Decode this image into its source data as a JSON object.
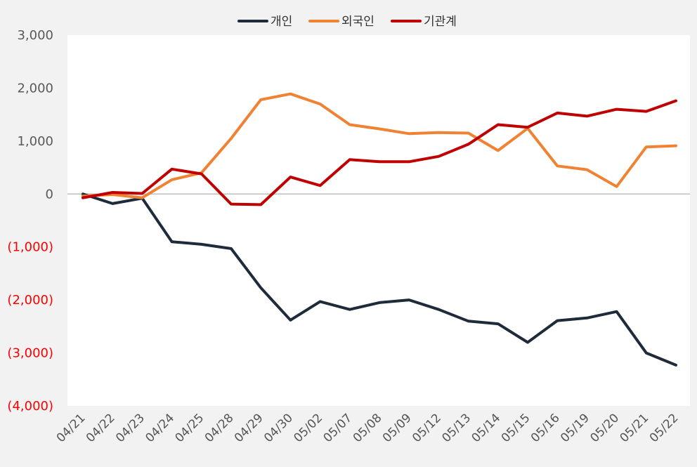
{
  "chart_data": {
    "type": "line",
    "categories": [
      "04/21",
      "04/22",
      "04/23",
      "04/24",
      "04/25",
      "04/28",
      "04/29",
      "04/30",
      "05/02",
      "05/07",
      "05/08",
      "05/09",
      "05/12",
      "05/13",
      "05/14",
      "05/15",
      "05/16",
      "05/19",
      "05/20",
      "05/21",
      "05/22"
    ],
    "ylim": [
      -4000,
      3000
    ],
    "yticks": [
      3000,
      2000,
      1000,
      0,
      -1000,
      -2000,
      -3000,
      -4000
    ],
    "ytick_labels": [
      "3,000",
      "2,000",
      "1,000",
      "0",
      "(1,000)",
      "(2,000)",
      "(3,000)",
      "(4,000)"
    ],
    "negative_label_color": "#ff0000",
    "positive_label_color": "#595959",
    "zero_line": true,
    "grid": false,
    "legend_position": "top-center",
    "series": [
      {
        "name": "개인",
        "color": "#1f2a3a",
        "values": [
          0,
          -180,
          -80,
          -900,
          -950,
          -1030,
          -1770,
          -2380,
          -2030,
          -2180,
          -2050,
          -2000,
          -2180,
          -2400,
          -2450,
          -2800,
          -2390,
          -2340,
          -2220,
          -3000,
          -3230
        ]
      },
      {
        "name": "외국인",
        "color": "#ef8233",
        "values": [
          -40,
          -10,
          -70,
          270,
          400,
          1050,
          1780,
          1890,
          1700,
          1310,
          1230,
          1140,
          1160,
          1150,
          820,
          1240,
          530,
          460,
          140,
          890,
          910
        ]
      },
      {
        "name": "기관계",
        "color": "#c00000",
        "values": [
          -70,
          30,
          10,
          470,
          380,
          -190,
          -200,
          320,
          160,
          650,
          610,
          610,
          710,
          940,
          1310,
          1260,
          1530,
          1470,
          1600,
          1560,
          1760
        ]
      }
    ]
  }
}
